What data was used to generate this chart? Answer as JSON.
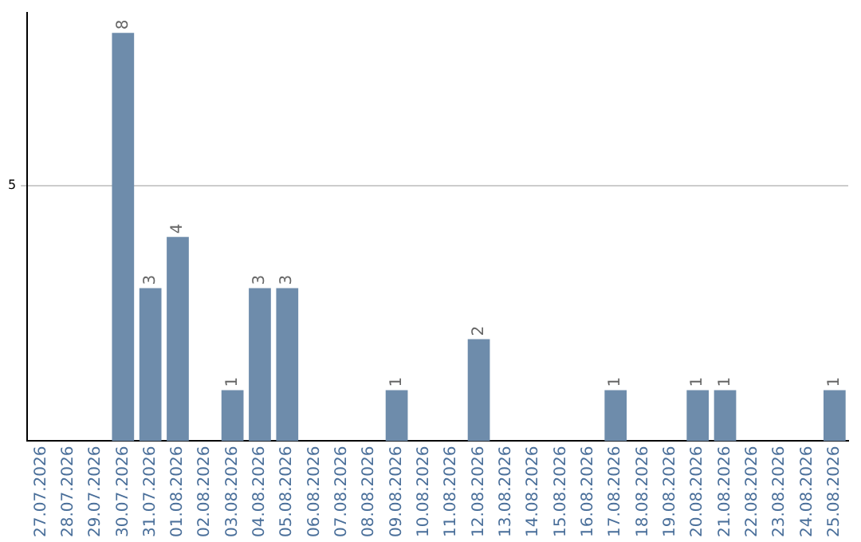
{
  "chart_data": {
    "type": "bar",
    "categories": [
      "27.07.2026",
      "28.07.2026",
      "29.07.2026",
      "30.07.2026",
      "31.07.2026",
      "01.08.2026",
      "02.08.2026",
      "03.08.2026",
      "04.08.2026",
      "05.08.2026",
      "06.08.2026",
      "07.08.2026",
      "08.08.2026",
      "09.08.2026",
      "10.08.2026",
      "11.08.2026",
      "12.08.2026",
      "13.08.2026",
      "14.08.2026",
      "15.08.2026",
      "16.08.2026",
      "17.08.2026",
      "18.08.2026",
      "19.08.2026",
      "20.08.2026",
      "21.08.2026",
      "22.08.2026",
      "23.08.2026",
      "24.08.2026",
      "25.08.2026"
    ],
    "values": [
      0,
      0,
      0,
      8,
      3,
      4,
      0,
      1,
      3,
      3,
      0,
      0,
      0,
      1,
      0,
      0,
      2,
      0,
      0,
      0,
      0,
      1,
      0,
      0,
      1,
      1,
      0,
      0,
      0,
      1
    ],
    "value_labels": [
      null,
      null,
      null,
      "8",
      "3",
      "4",
      null,
      "1",
      "3",
      "3",
      null,
      null,
      null,
      "1",
      null,
      null,
      "2",
      null,
      null,
      null,
      null,
      "1",
      null,
      null,
      "1",
      "1",
      null,
      null,
      null,
      "1"
    ],
    "color": "#6e8cab",
    "ylim": [
      0,
      8.4
    ],
    "yticks": [
      5
    ],
    "grid": "y",
    "legend": false
  }
}
